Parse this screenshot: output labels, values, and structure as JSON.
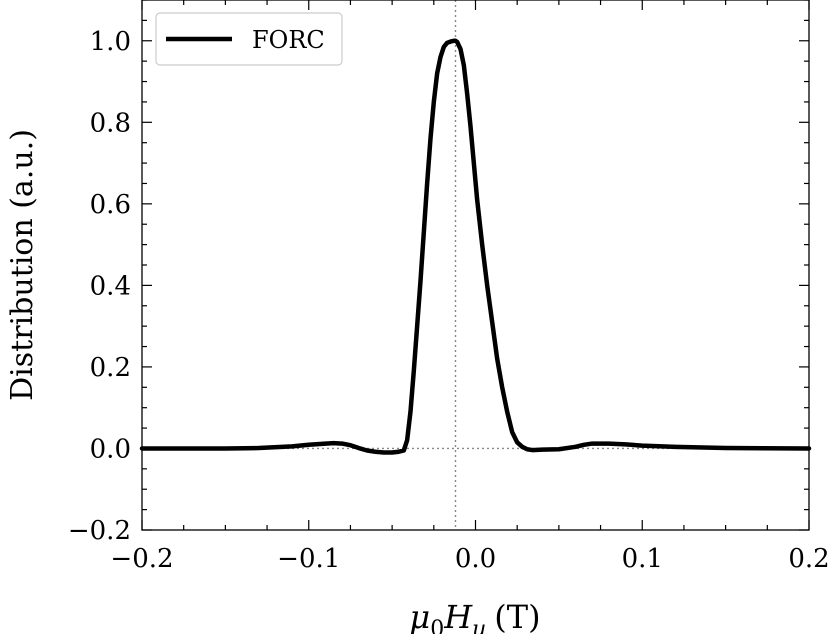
{
  "chart_data": {
    "type": "line",
    "xlabel_main": "μ",
    "xlabel_sub0": "0",
    "xlabel_H": "H",
    "xlabel_subu": "u",
    "xlabel_unit": "(T)",
    "ylabel": "Distribution (a.u.)",
    "xlim": [
      -0.2,
      0.2
    ],
    "ylim": [
      -0.2,
      1.1
    ],
    "x_ticks": [
      -0.2,
      -0.1,
      0.0,
      0.1,
      0.2
    ],
    "x_tick_labels": [
      "−0.2",
      "−0.1",
      "0.0",
      "0.1",
      "0.2"
    ],
    "y_ticks": [
      -0.2,
      0.0,
      0.2,
      0.4,
      0.6,
      0.8,
      1.0
    ],
    "y_tick_labels": [
      "−0.2",
      "0.0",
      "0.2",
      "0.4",
      "0.6",
      "0.8",
      "1.0"
    ],
    "grid": false,
    "legend_position": "top-left",
    "reference_lines": {
      "vertical_x": -0.012,
      "horizontal_y": 0.0,
      "style": "dotted"
    },
    "series": [
      {
        "name": "FORC",
        "color": "#000000",
        "x": [
          -0.2,
          -0.15,
          -0.13,
          -0.11,
          -0.1,
          -0.09,
          -0.085,
          -0.08,
          -0.075,
          -0.07,
          -0.065,
          -0.06,
          -0.055,
          -0.05,
          -0.046,
          -0.043,
          -0.041,
          -0.039,
          -0.037,
          -0.035,
          -0.033,
          -0.031,
          -0.029,
          -0.027,
          -0.025,
          -0.023,
          -0.021,
          -0.019,
          -0.017,
          -0.015,
          -0.013,
          -0.012,
          -0.011,
          -0.009,
          -0.007,
          -0.005,
          -0.003,
          -0.001,
          0.001,
          0.004,
          0.007,
          0.01,
          0.013,
          0.016,
          0.019,
          0.022,
          0.025,
          0.028,
          0.031,
          0.034,
          0.04,
          0.05,
          0.06,
          0.065,
          0.07,
          0.08,
          0.09,
          0.1,
          0.12,
          0.15,
          0.2
        ],
        "y": [
          0.0,
          0.0,
          0.001,
          0.005,
          0.009,
          0.012,
          0.013,
          0.012,
          0.008,
          0.001,
          -0.005,
          -0.008,
          -0.01,
          -0.01,
          -0.008,
          -0.005,
          0.02,
          0.09,
          0.19,
          0.3,
          0.41,
          0.53,
          0.65,
          0.76,
          0.85,
          0.92,
          0.96,
          0.985,
          0.995,
          0.998,
          1.0,
          1.0,
          0.997,
          0.98,
          0.94,
          0.87,
          0.79,
          0.7,
          0.61,
          0.5,
          0.4,
          0.31,
          0.22,
          0.15,
          0.09,
          0.04,
          0.015,
          0.004,
          -0.002,
          -0.004,
          -0.003,
          -0.002,
          0.004,
          0.009,
          0.012,
          0.012,
          0.01,
          0.007,
          0.004,
          0.001,
          0.0
        ]
      }
    ]
  }
}
